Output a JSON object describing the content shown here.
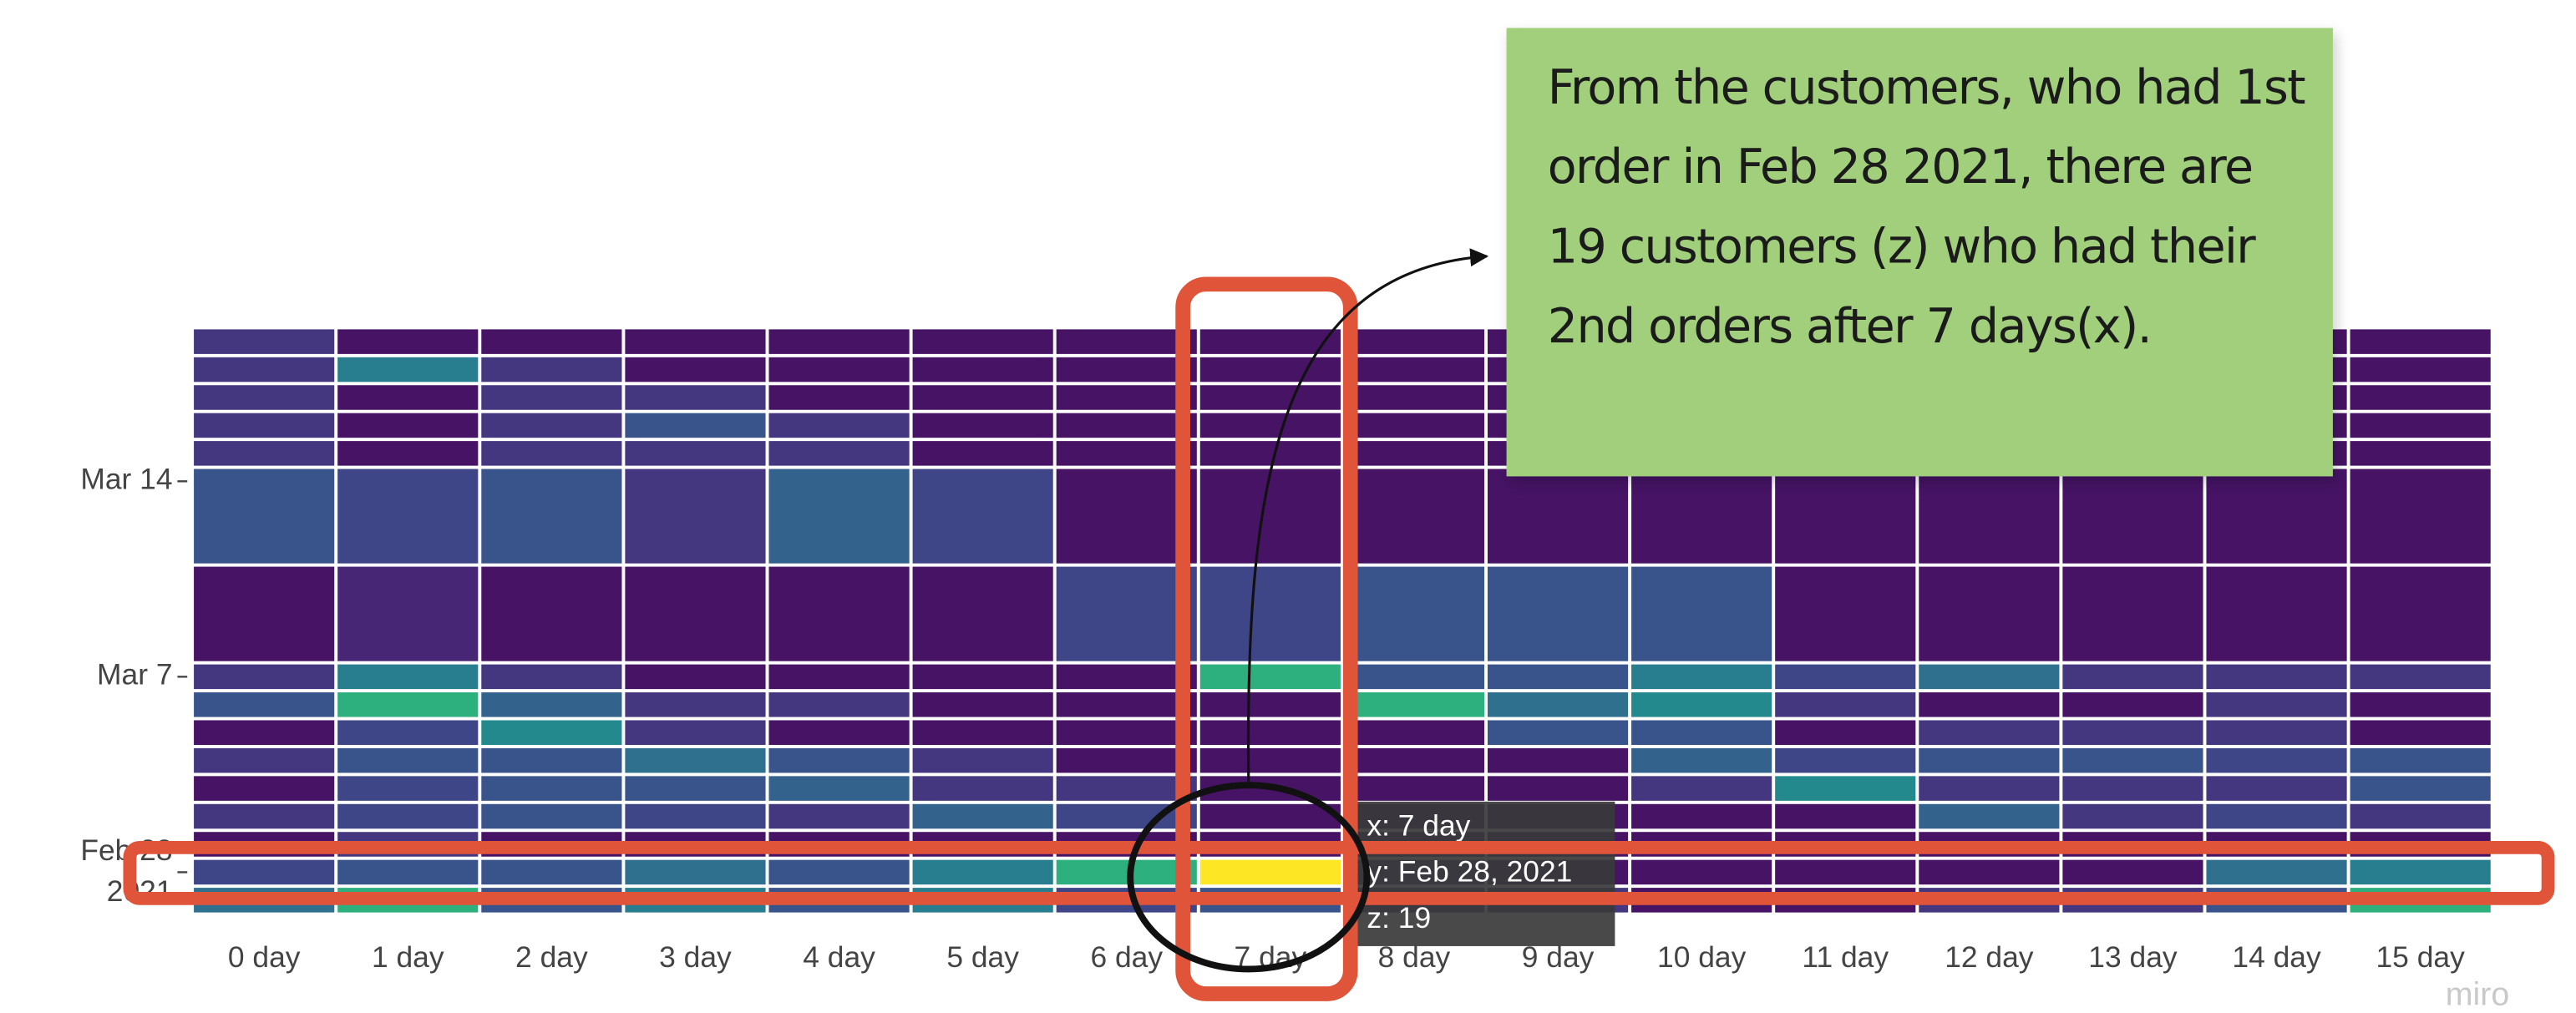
{
  "chart_data": {
    "type": "heatmap",
    "x": [
      "0 day",
      "1 day",
      "2 day",
      "3 day",
      "4 day",
      "5 day",
      "6 day",
      "7 day",
      "8 day",
      "9 day",
      "10 day",
      "11 day",
      "12 day",
      "13 day",
      "14 day",
      "15 day"
    ],
    "y": [
      "2021-02-27",
      "2021-02-28",
      "2021-03-01",
      "2021-03-02",
      "2021-03-03",
      "2021-03-04",
      "2021-03-05",
      "2021-03-06",
      "2021-03-07",
      "2021-03-08",
      "2021-03-14",
      "2021-03-15",
      "2021-03-16",
      "2021-03-17",
      "2021-03-18",
      "2021-03-19"
    ],
    "z": [
      [
        7,
        12,
        5,
        8,
        5,
        8,
        4,
        5,
        3,
        3,
        1,
        1,
        3,
        3,
        5,
        12
      ],
      [
        4,
        5,
        5,
        7,
        5,
        8,
        12,
        19,
        3,
        1,
        1,
        1,
        1,
        1,
        7,
        8
      ],
      [
        1,
        3,
        1,
        1,
        1,
        1,
        1,
        1,
        1,
        1,
        1,
        1,
        1,
        1,
        1,
        1
      ],
      [
        3,
        4,
        5,
        4,
        3,
        6,
        4,
        1,
        1,
        1,
        1,
        1,
        6,
        3,
        4,
        3
      ],
      [
        1,
        4,
        5,
        5,
        6,
        3,
        3,
        1,
        1,
        1,
        3,
        9,
        3,
        3,
        3,
        5
      ],
      [
        3,
        5,
        5,
        7,
        5,
        3,
        1,
        1,
        1,
        1,
        6,
        4,
        5,
        5,
        4,
        5
      ],
      [
        1,
        4,
        9,
        3,
        1,
        1,
        1,
        1,
        1,
        5,
        5,
        1,
        3,
        3,
        3,
        1
      ],
      [
        5,
        12,
        6,
        3,
        3,
        1,
        1,
        1,
        12,
        7,
        9,
        3,
        1,
        1,
        3,
        1
      ],
      [
        3,
        8,
        3,
        1,
        1,
        1,
        1,
        12,
        5,
        5,
        8,
        4,
        7,
        3,
        3,
        3
      ],
      [
        1,
        2,
        1,
        1,
        1,
        1,
        4,
        4,
        5,
        5,
        5,
        1,
        1,
        1,
        1,
        1
      ],
      [
        5,
        4,
        5,
        3,
        6,
        4,
        1,
        1,
        1,
        1,
        1,
        1,
        1,
        1,
        1,
        1
      ],
      [
        3,
        1,
        3,
        3,
        3,
        1,
        1,
        1,
        1,
        1,
        1,
        1,
        1,
        1,
        1,
        1
      ],
      [
        3,
        1,
        3,
        5,
        3,
        1,
        1,
        1,
        1,
        1,
        1,
        1,
        1,
        1,
        1,
        1
      ],
      [
        3,
        1,
        3,
        3,
        1,
        1,
        1,
        1,
        1,
        1,
        1,
        1,
        1,
        1,
        1,
        1
      ],
      [
        3,
        8,
        3,
        1,
        1,
        1,
        1,
        1,
        1,
        1,
        1,
        1,
        1,
        1,
        1,
        1
      ],
      [
        3,
        1,
        1,
        1,
        1,
        1,
        1,
        1,
        1,
        1,
        1,
        1,
        1,
        1,
        1,
        1
      ]
    ],
    "colorscale": "Viridis",
    "zlim": [
      0,
      19
    ],
    "ylim": [
      "2021-02-26T12:00:00Z",
      "2021-03-19T12:00:00Z"
    ],
    "yticks": [
      {
        "value": "2021-02-28",
        "label": "Feb 28\n2021"
      },
      {
        "value": "2021-03-07",
        "label": "Mar 7"
      },
      {
        "value": "2021-03-14",
        "label": "Mar 14"
      }
    ]
  },
  "tooltip": {
    "lines": [
      "x: 7 day",
      "y: Feb 28, 2021",
      "z: 19"
    ]
  },
  "note": {
    "lines": [
      "From the customers, who had 1st",
      "order in Feb 28 2021, there are",
      "19 customers (z) who had their",
      "2nd orders after 7 days(x)."
    ]
  },
  "watermark": "miro"
}
